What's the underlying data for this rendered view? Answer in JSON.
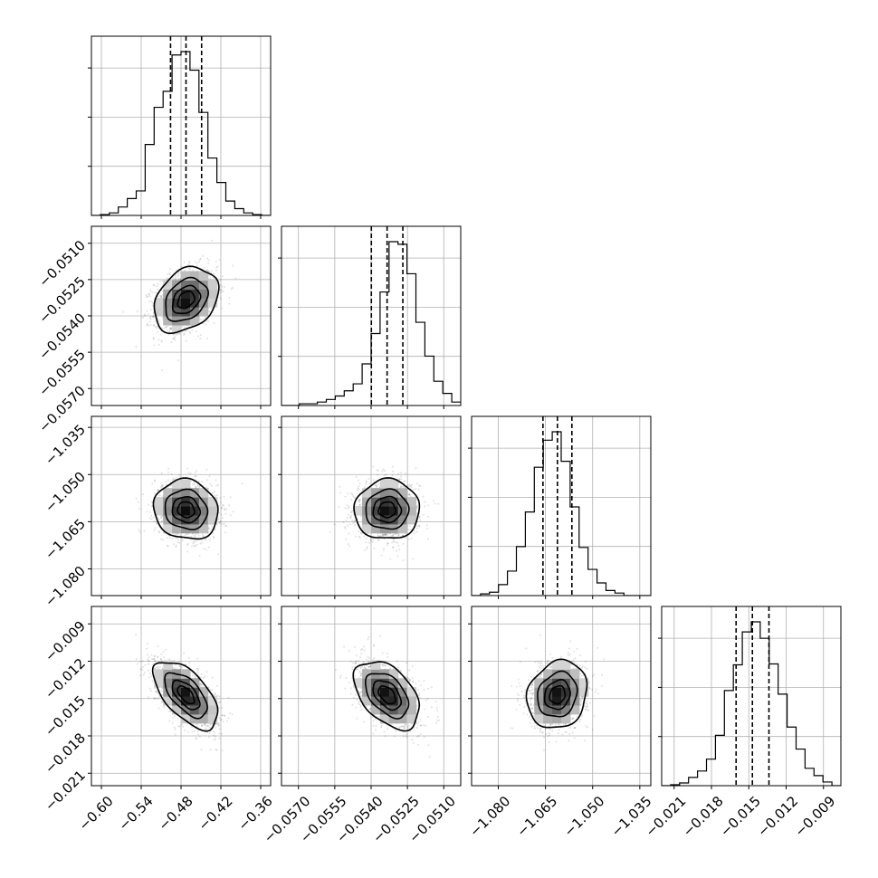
{
  "chart_data": {
    "type": "corner",
    "grid": true,
    "parameters": [
      {
        "range": [
          -0.615,
          -0.345
        ],
        "ticks": [
          "−0.60",
          "−0.54",
          "−0.48",
          "−0.42",
          "−0.36"
        ],
        "tick_values": [
          -0.6,
          -0.54,
          -0.48,
          -0.42,
          -0.36
        ],
        "quantiles": [
          -0.4958,
          -0.4725,
          -0.449
        ],
        "histogram": {
          "edges_start": -0.615,
          "bin_width": 0.0135,
          "counts": [
            0,
            1,
            3,
            10,
            20,
            29,
            84,
            128,
            147,
            190,
            194,
            172,
            122,
            68,
            39,
            17,
            8,
            3,
            1,
            0
          ]
        }
      },
      {
        "range": [
          -0.0577,
          -0.0503
        ],
        "ticks": [
          "−0.0570",
          "−0.0555",
          "−0.0540",
          "−0.0525",
          "−0.0510"
        ],
        "tick_values": [
          -0.057,
          -0.0555,
          -0.054,
          -0.0525,
          -0.051
        ],
        "quantiles": [
          -0.05399,
          -0.05334,
          -0.05269
        ],
        "histogram": {
          "edges_start": -0.0577,
          "bin_width": 0.00037,
          "counts": [
            0,
            0,
            2,
            2,
            4,
            7,
            11,
            17,
            25,
            48,
            83,
            131,
            189,
            186,
            152,
            96,
            57,
            28,
            14,
            4
          ]
        }
      },
      {
        "range": [
          -1.0885,
          -1.0315
        ],
        "ticks": [
          "−1.080",
          "−1.065",
          "−1.050",
          "−1.035"
        ],
        "tick_values": [
          -1.08,
          -1.065,
          -1.05,
          -1.035
        ],
        "quantiles": [
          -1.0658,
          -1.0612,
          -1.0566
        ],
        "histogram": {
          "edges_start": -1.0885,
          "bin_width": 0.00285,
          "counts": [
            0,
            2,
            4,
            13,
            29,
            58,
            99,
            152,
            184,
            194,
            159,
            105,
            57,
            31,
            15,
            6,
            3,
            0,
            0,
            0
          ]
        }
      },
      {
        "range": [
          -0.022,
          -0.0076
        ],
        "ticks": [
          "−0.021",
          "−0.018",
          "−0.015",
          "−0.012",
          "−0.009"
        ],
        "tick_values": [
          -0.021,
          -0.018,
          -0.015,
          -0.012,
          -0.009
        ],
        "quantiles": [
          -0.01602,
          -0.01471,
          -0.01338
        ],
        "histogram": {
          "edges_start": -0.022,
          "bin_width": 0.00072,
          "counts": [
            0,
            1,
            3,
            9,
            16,
            29,
            55,
            104,
            132,
            168,
            179,
            161,
            133,
            100,
            64,
            40,
            19,
            11,
            4,
            0
          ]
        }
      }
    ],
    "correlations": {
      "1-0": 0.3,
      "2-0": -0.1,
      "2-1": 0.02,
      "3-0": -0.6,
      "3-1": -0.45,
      "3-2": 0.15
    },
    "contour_levels_sigma": [
      0.5,
      1.0,
      1.5,
      2.0
    ]
  }
}
